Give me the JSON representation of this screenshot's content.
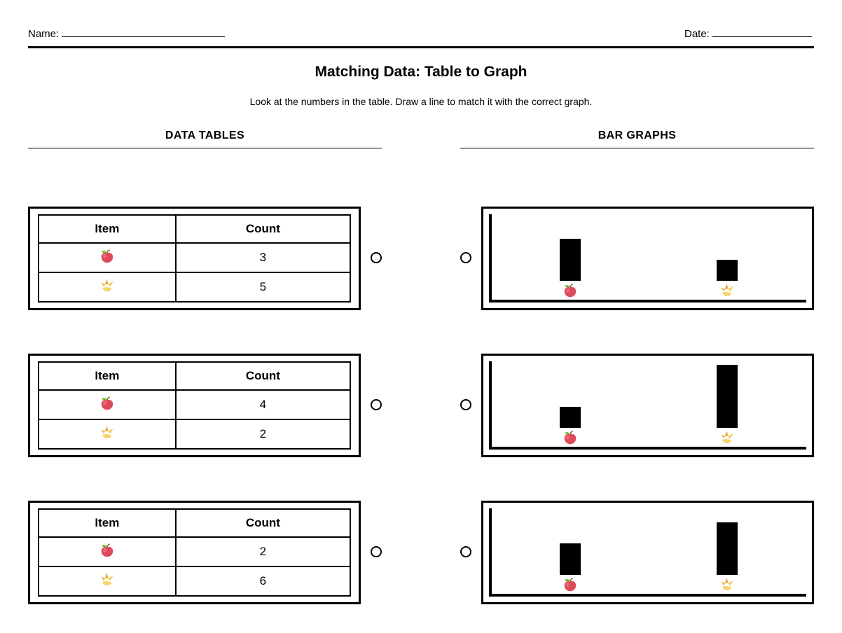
{
  "page": {
    "name_label": "Name:",
    "date_label": "Date:",
    "title": "Matching Data: Table to Graph",
    "instructions": "Look at the numbers in the table. Draw a line to match it with the correct graph.",
    "left_section_heading": "DATA TABLES",
    "right_section_heading": "BAR GRAPHS"
  },
  "table_header": {
    "item": "Item",
    "count": "Count"
  },
  "pairs": [
    {
      "table": {
        "rows": [
          {
            "item_icon": "apple-icon",
            "count": "3"
          },
          {
            "item_icon": "banana-icon",
            "count": "5"
          }
        ]
      },
      "graph": {
        "bars": [
          {
            "item_icon": "apple-icon",
            "value": 4
          },
          {
            "item_icon": "banana-icon",
            "value": 2
          }
        ]
      }
    },
    {
      "table": {
        "rows": [
          {
            "item_icon": "apple-icon",
            "count": "4"
          },
          {
            "item_icon": "banana-icon",
            "count": "2"
          }
        ]
      },
      "graph": {
        "bars": [
          {
            "item_icon": "apple-icon",
            "value": 2
          },
          {
            "item_icon": "banana-icon",
            "value": 6
          }
        ]
      }
    },
    {
      "table": {
        "rows": [
          {
            "item_icon": "apple-icon",
            "count": "2"
          },
          {
            "item_icon": "banana-icon",
            "count": "6"
          }
        ]
      },
      "graph": {
        "bars": [
          {
            "item_icon": "apple-icon",
            "value": 3
          },
          {
            "item_icon": "banana-icon",
            "value": 5
          }
        ]
      }
    }
  ],
  "chart_data": [
    {
      "type": "bar",
      "categories": [
        "apple",
        "banana"
      ],
      "values": [
        4,
        2
      ],
      "title": "",
      "xlabel": "",
      "ylabel": "",
      "grid": false,
      "legend": false
    },
    {
      "type": "bar",
      "categories": [
        "apple",
        "banana"
      ],
      "values": [
        2,
        6
      ],
      "title": "",
      "xlabel": "",
      "ylabel": "",
      "grid": false,
      "legend": false
    },
    {
      "type": "bar",
      "categories": [
        "apple",
        "banana"
      ],
      "values": [
        3,
        5
      ],
      "title": "",
      "xlabel": "",
      "ylabel": "",
      "grid": false,
      "legend": false
    }
  ],
  "colors": {
    "ink": "#000000",
    "paper": "#ffffff",
    "apple_red": "#dd4a5c",
    "leaf_green": "#6fba2c",
    "banana_yellow": "#f5c84c"
  }
}
